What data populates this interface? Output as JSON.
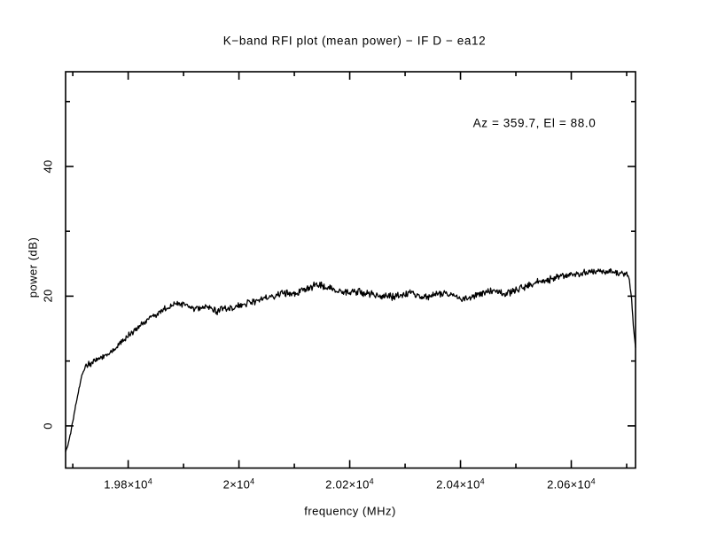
{
  "page": {
    "background": "#ffffff",
    "foreground": "#000000"
  },
  "chart_data": {
    "type": "line",
    "title": "K−band RFI plot (mean power) − IF D − ea12",
    "annotation": "Az = 359.7, El = 88.0",
    "xlabel": "frequency (MHz)",
    "ylabel": "power (dB)",
    "xlim": [
      19687,
      20716
    ],
    "ylim": [
      -6.5,
      54.6
    ],
    "grid": false,
    "legend": "none",
    "line_color": "#000000",
    "noise_db": 0.35,
    "x_major_ticks": [
      19800,
      20000,
      20200,
      20400,
      20600
    ],
    "x_major_tick_labels": [
      {
        "text": "1.98×10",
        "sup": "4"
      },
      {
        "text": "2×10",
        "sup": "4"
      },
      {
        "text": "2.02×10",
        "sup": "4"
      },
      {
        "text": "2.04×10",
        "sup": "4"
      },
      {
        "text": "2.06×10",
        "sup": "4"
      }
    ],
    "x_minor_step": 100,
    "y_major_ticks": [
      0,
      20,
      40
    ],
    "y_major_tick_labels": [
      "0",
      "20",
      "40"
    ],
    "y_minor_step": 10,
    "series": [
      {
        "name": "mean power",
        "points": [
          [
            19687,
            -3.9
          ],
          [
            19691,
            -2.8
          ],
          [
            19695,
            -1.6
          ],
          [
            19700,
            0.8
          ],
          [
            19705,
            3.0
          ],
          [
            19710,
            5.2
          ],
          [
            19715,
            7.2
          ],
          [
            19719,
            8.5
          ],
          [
            19724,
            9.2
          ],
          [
            19730,
            9.6
          ],
          [
            19740,
            10.0
          ],
          [
            19752,
            10.5
          ],
          [
            19764,
            11.0
          ],
          [
            19776,
            11.9
          ],
          [
            19788,
            12.9
          ],
          [
            19800,
            13.8
          ],
          [
            19812,
            14.8
          ],
          [
            19824,
            15.7
          ],
          [
            19836,
            16.4
          ],
          [
            19848,
            17.1
          ],
          [
            19860,
            17.7
          ],
          [
            19872,
            18.1
          ],
          [
            19884,
            18.8
          ],
          [
            19896,
            18.9
          ],
          [
            19908,
            18.6
          ],
          [
            19920,
            18.0
          ],
          [
            19932,
            18.2
          ],
          [
            19942,
            18.5
          ],
          [
            19952,
            17.9
          ],
          [
            19962,
            17.7
          ],
          [
            19975,
            18.0
          ],
          [
            19988,
            18.2
          ],
          [
            20000,
            18.4
          ],
          [
            20012,
            18.7
          ],
          [
            20025,
            19.1
          ],
          [
            20038,
            19.5
          ],
          [
            20050,
            19.9
          ],
          [
            20065,
            20.1
          ],
          [
            20080,
            20.3
          ],
          [
            20095,
            20.5
          ],
          [
            20110,
            20.7
          ],
          [
            20125,
            21.2
          ],
          [
            20140,
            21.8
          ],
          [
            20150,
            21.7
          ],
          [
            20162,
            21.2
          ],
          [
            20175,
            20.8
          ],
          [
            20190,
            20.6
          ],
          [
            20205,
            20.7
          ],
          [
            20220,
            20.6
          ],
          [
            20235,
            20.3
          ],
          [
            20250,
            20.1
          ],
          [
            20265,
            19.9
          ],
          [
            20280,
            20.0
          ],
          [
            20295,
            20.3
          ],
          [
            20310,
            20.5
          ],
          [
            20322,
            20.1
          ],
          [
            20335,
            19.7
          ],
          [
            20348,
            20.0
          ],
          [
            20360,
            20.3
          ],
          [
            20372,
            20.4
          ],
          [
            20385,
            20.1
          ],
          [
            20398,
            19.7
          ],
          [
            20412,
            19.5
          ],
          [
            20425,
            19.9
          ],
          [
            20438,
            20.4
          ],
          [
            20452,
            20.7
          ],
          [
            20465,
            20.8
          ],
          [
            20478,
            20.3
          ],
          [
            20492,
            20.6
          ],
          [
            20505,
            21.0
          ],
          [
            20518,
            21.5
          ],
          [
            20532,
            21.9
          ],
          [
            20545,
            22.2
          ],
          [
            20560,
            22.5
          ],
          [
            20575,
            22.9
          ],
          [
            20590,
            23.1
          ],
          [
            20605,
            23.3
          ],
          [
            20620,
            23.5
          ],
          [
            20635,
            23.7
          ],
          [
            20650,
            23.8
          ],
          [
            20665,
            23.9
          ],
          [
            20678,
            23.7
          ],
          [
            20690,
            23.6
          ],
          [
            20700,
            23.5
          ],
          [
            20705,
            22.5
          ],
          [
            20709,
            19.5
          ],
          [
            20712,
            15.5
          ],
          [
            20716,
            12.1
          ]
        ]
      }
    ]
  }
}
